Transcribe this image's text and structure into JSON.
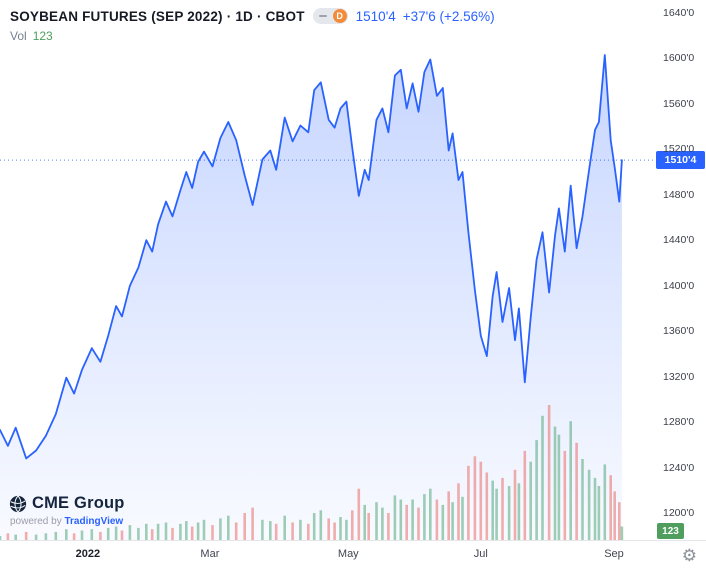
{
  "header": {
    "title": "SOYBEAN FUTURES (SEP 2022) · 1D · CBOT",
    "interval_label": "D",
    "price": "1510'4",
    "change": "+37'6 (+2.56%)",
    "vol_label": "Vol",
    "vol_value": "123"
  },
  "logo": {
    "brand": "CME Group",
    "powered_by": "powered by",
    "attribution": "TradingView"
  },
  "axis": {
    "price_badge": "1510'4",
    "volume_badge": "123"
  },
  "icons": {
    "gear": "⚙"
  },
  "colors": {
    "line": "#2962ff",
    "accent_text": "#2962ff",
    "volume_up": "#43a06e",
    "volume_down": "#e8605a",
    "price_badge_bg": "#2962ff",
    "volume_badge_bg": "#4f9e5e",
    "vol_value_text": "#4f9e5e",
    "toggle_knob": "#f28c3b"
  },
  "chart_data": {
    "type": "area",
    "title": "SOYBEAN FUTURES (SEP 2022)",
    "exchange": "CBOT",
    "interval": "1D",
    "last_price": 1510.5,
    "last_price_label": "1510'4",
    "change_label": "+37'6 (+2.56%)",
    "current_volume_label": "123",
    "ylim": [
      1176.2,
      1651.4
    ],
    "x": [
      0,
      0.012,
      0.024,
      0.04,
      0.055,
      0.07,
      0.085,
      0.101,
      0.113,
      0.125,
      0.14,
      0.153,
      0.165,
      0.177,
      0.186,
      0.198,
      0.211,
      0.223,
      0.232,
      0.241,
      0.253,
      0.263,
      0.275,
      0.284,
      0.293,
      0.302,
      0.311,
      0.324,
      0.336,
      0.348,
      0.36,
      0.373,
      0.385,
      0.4,
      0.412,
      0.421,
      0.434,
      0.446,
      0.458,
      0.47,
      0.479,
      0.489,
      0.501,
      0.51,
      0.519,
      0.528,
      0.537,
      0.547,
      0.556,
      0.562,
      0.574,
      0.583,
      0.592,
      0.602,
      0.611,
      0.62,
      0.629,
      0.638,
      0.647,
      0.656,
      0.666,
      0.675,
      0.684,
      0.69,
      0.699,
      0.705,
      0.714,
      0.724,
      0.733,
      0.742,
      0.751,
      0.757,
      0.766,
      0.776,
      0.785,
      0.791,
      0.8,
      0.809,
      0.818,
      0.827,
      0.837,
      0.846,
      0.852,
      0.861,
      0.87,
      0.879,
      0.888,
      0.898,
      0.907,
      0.913,
      0.922,
      0.931,
      0.937,
      0.944,
      0.948
    ],
    "price": [
      1273,
      1259,
      1275,
      1248,
      1255,
      1268,
      1287,
      1319,
      1305,
      1326,
      1345,
      1333,
      1356,
      1382,
      1373,
      1400,
      1416,
      1440,
      1430,
      1454,
      1474,
      1461,
      1484,
      1500,
      1486,
      1509,
      1518,
      1505,
      1530,
      1544,
      1528,
      1497,
      1471,
      1511,
      1519,
      1502,
      1548,
      1527,
      1541,
      1535,
      1572,
      1579,
      1546,
      1539,
      1556,
      1562,
      1521,
      1479,
      1502,
      1493,
      1546,
      1556,
      1535,
      1585,
      1590,
      1556,
      1578,
      1553,
      1588,
      1599,
      1567,
      1574,
      1519,
      1534,
      1493,
      1500,
      1447,
      1396,
      1356,
      1338,
      1391,
      1412,
      1368,
      1398,
      1352,
      1380,
      1315,
      1372,
      1423,
      1447,
      1394,
      1444,
      1468,
      1430,
      1488,
      1433,
      1461,
      1502,
      1537,
      1544,
      1603,
      1528,
      1504,
      1474,
      1510.5
    ],
    "volume": [
      0.03,
      0.05,
      0.04,
      0.06,
      0.04,
      0.05,
      0.06,
      0.08,
      0.05,
      0.07,
      0.08,
      0.06,
      0.09,
      0.1,
      0.07,
      0.11,
      0.09,
      0.12,
      0.08,
      0.12,
      0.13,
      0.09,
      0.12,
      0.14,
      0.1,
      0.13,
      0.15,
      0.11,
      0.16,
      0.18,
      0.13,
      0.2,
      0.24,
      0.15,
      0.14,
      0.12,
      0.18,
      0.13,
      0.15,
      0.12,
      0.2,
      0.22,
      0.16,
      0.13,
      0.17,
      0.15,
      0.22,
      0.38,
      0.26,
      0.2,
      0.28,
      0.24,
      0.2,
      0.33,
      0.3,
      0.26,
      0.3,
      0.24,
      0.34,
      0.38,
      0.3,
      0.26,
      0.36,
      0.28,
      0.42,
      0.32,
      0.55,
      0.62,
      0.58,
      0.5,
      0.44,
      0.38,
      0.46,
      0.4,
      0.52,
      0.42,
      0.66,
      0.58,
      0.74,
      0.92,
      1.0,
      0.84,
      0.78,
      0.66,
      0.88,
      0.72,
      0.6,
      0.52,
      0.46,
      0.4,
      0.56,
      0.48,
      0.36,
      0.28,
      0.1
    ],
    "y_ticks": {
      "values": [
        1640,
        1600,
        1560,
        1520,
        1480,
        1440,
        1400,
        1360,
        1320,
        1280,
        1240,
        1200
      ],
      "labels": [
        "1640'0",
        "1600'0",
        "1560'0",
        "1520'0",
        "1480'0",
        "1440'0",
        "1400'0",
        "1360'0",
        "1320'0",
        "1280'0",
        "1240'0",
        "1200'0"
      ]
    },
    "x_ticks": [
      {
        "pos": 0.134,
        "label": "2022",
        "bold": true
      },
      {
        "pos": 0.32,
        "label": "Mar",
        "bold": false
      },
      {
        "pos": 0.531,
        "label": "May",
        "bold": false
      },
      {
        "pos": 0.733,
        "label": "Jul",
        "bold": false
      },
      {
        "pos": 0.936,
        "label": "Sep",
        "bold": false
      }
    ],
    "layout": {
      "grid": false,
      "legend": false,
      "volume_pane_ratio": 0.25,
      "last_price_line": "dotted"
    }
  }
}
